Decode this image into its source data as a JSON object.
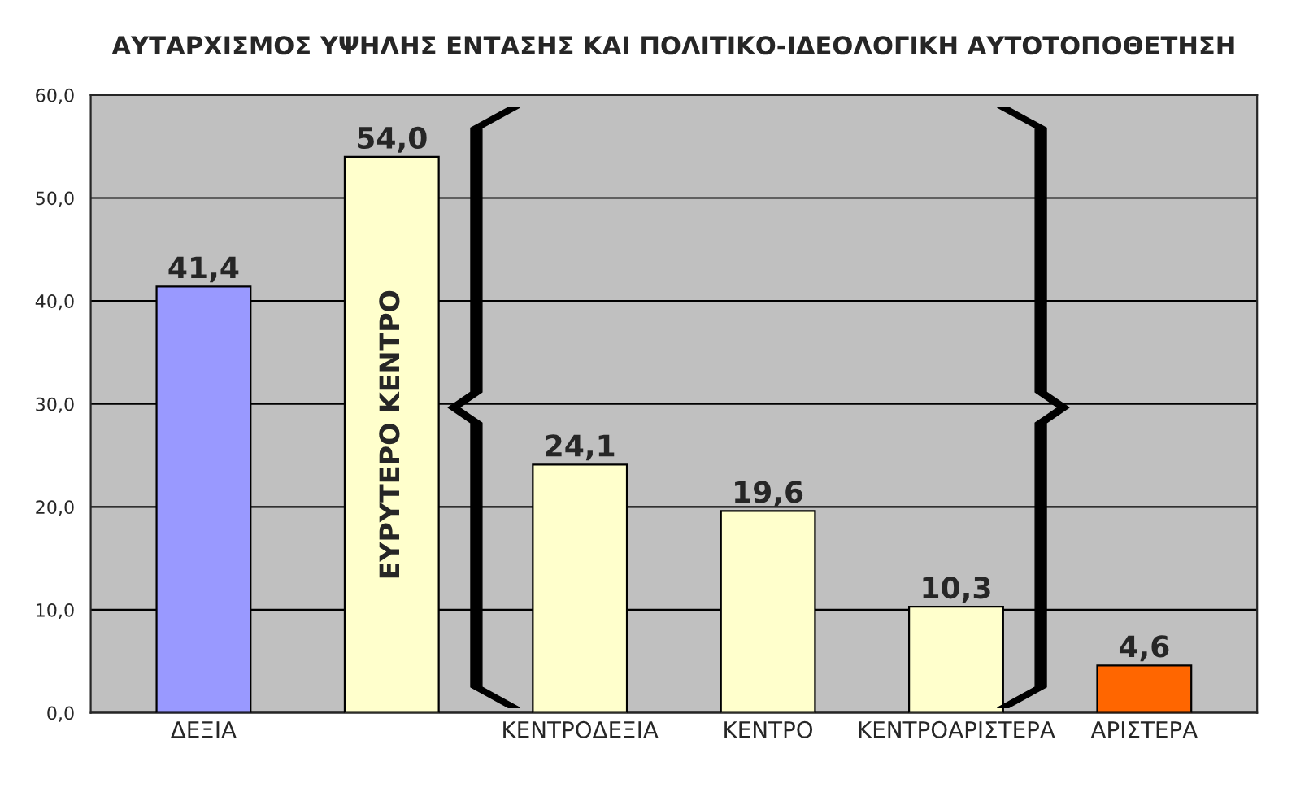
{
  "chart_data": {
    "type": "bar",
    "title": "ΑΥΤΑΡΧΙΣΜΟΣ ΥΨΗΛΗΣ ΕΝΤΑΣΗΣ ΚΑΙ ΠΟΛΙΤΙΚΟ-ΙΔΕΟΛΟΓΙΚΗ ΑΥΤΟΤΟΠΟΘΕΤΗΣΗ",
    "categories": [
      "ΔΕΞΙΑ",
      null,
      "ΚΕΝΤΡΟΔΕΞΙΑ",
      "ΚΕΝΤΡΟ",
      "ΚΕΝΤΡΟΑΡΙΣΤΕΡΑ",
      "ΑΡΙΣΤΕΡΑ"
    ],
    "values": [
      41.4,
      54.0,
      24.1,
      19.6,
      10.3,
      4.6
    ],
    "value_labels": [
      "41,4",
      "54,0",
      "24,1",
      "19,6",
      "10,3",
      "4,6"
    ],
    "colors": [
      "#9999ff",
      "#ffffcc",
      "#ffffcc",
      "#ffffcc",
      "#ffffcc",
      "#ff6600"
    ],
    "annotations": [
      "ΕΥΡΥΤΕΡΟ ΚΕΝΤΡΟ"
    ],
    "ylim": [
      0,
      60
    ],
    "yticks": [
      {
        "value": 0,
        "label": "0,0"
      },
      {
        "value": 10,
        "label": "10,0"
      },
      {
        "value": 20,
        "label": "20,0"
      },
      {
        "value": 30,
        "label": "30,0"
      },
      {
        "value": 40,
        "label": "40,0"
      },
      {
        "value": 50,
        "label": "50,0"
      },
      {
        "value": 60,
        "label": "60,0"
      }
    ],
    "grid": "y"
  }
}
